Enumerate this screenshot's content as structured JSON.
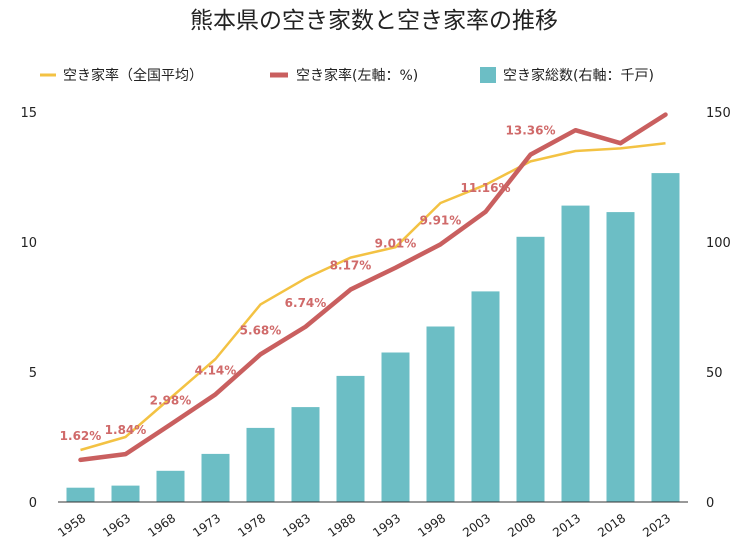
{
  "chart_data": {
    "type": "bar",
    "title": "熊本県の空き家数と空き家率の推移",
    "legend_position": "top",
    "grid": false,
    "categories": [
      "1958",
      "1963",
      "1968",
      "1973",
      "1978",
      "1983",
      "1988",
      "1993",
      "1998",
      "2003",
      "2008",
      "2013",
      "2018",
      "2023"
    ],
    "ylim_left": [
      0,
      15
    ],
    "ylim_right": [
      0,
      150
    ],
    "left_ticks": [
      0,
      5,
      10,
      15
    ],
    "right_ticks": [
      0,
      50,
      100,
      150
    ],
    "series": [
      {
        "name": "空き家率（全国平均）",
        "type": "line",
        "axis": "left",
        "color": "#f3c243",
        "values": [
          2.0,
          2.5,
          4.0,
          5.5,
          7.6,
          8.6,
          9.4,
          9.8,
          11.5,
          12.2,
          13.1,
          13.5,
          13.6,
          13.8
        ]
      },
      {
        "name": "空き家率(左軸：%)",
        "type": "line",
        "axis": "left",
        "color": "#c95f5f",
        "values": [
          1.62,
          1.84,
          2.98,
          4.14,
          5.68,
          6.74,
          8.17,
          9.01,
          9.91,
          11.16,
          13.36,
          14.3,
          13.8,
          14.9
        ],
        "labels": [
          "1.62%",
          "1.84%",
          "2.98%",
          "4.14%",
          "5.68%",
          "6.74%",
          "8.17%",
          "9.01%",
          "9.91%",
          "11.16%",
          "13.36%",
          "",
          "",
          ""
        ]
      },
      {
        "name": "空き家総数(右軸：千戸)",
        "type": "bar",
        "axis": "right",
        "color": "#6cbec5",
        "values": [
          5.5,
          6.3,
          12,
          18.5,
          28.5,
          36.5,
          48.5,
          57.5,
          67.5,
          81,
          102,
          114,
          111.5,
          126.5
        ]
      }
    ]
  }
}
